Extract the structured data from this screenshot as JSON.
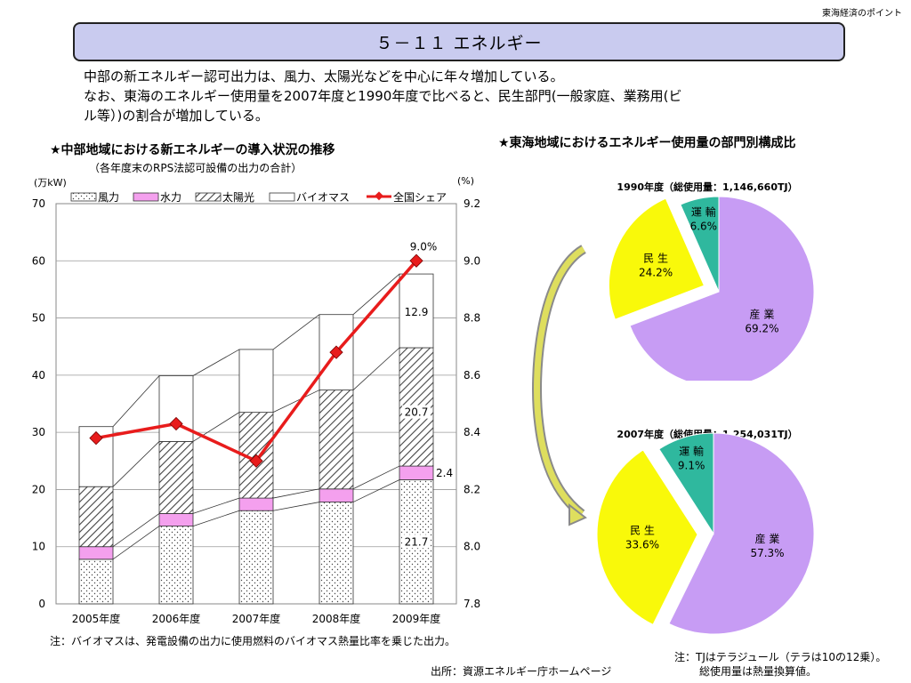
{
  "header_note": "東海経済のポイント",
  "title": "５－１１ エネルギー",
  "description": {
    "line1": "中部の新エネルギー認可出力は、風力、太陽光などを中心に年々増加している。",
    "line2": "なお、東海のエネルギー使用量を2007年度と1990年度で比べると、民生部門(一般家庭、業務用(ビ",
    "line3": "ル等）)の割合が増加している。"
  },
  "bar_section": {
    "title": "★中部地域における新エネルギーの導入状況の推移",
    "subtitle": "（各年度末のRPS法認可設備の出力の合計）",
    "left_unit": "(万kW)",
    "right_unit": "(%)",
    "note": "注：バイオマスは、発電設備の出力に使用燃料のバイオマス熱量比率を乗じた出力。"
  },
  "pie_section": {
    "title": "★東海地域におけるエネルギー使用量の部門別構成比"
  },
  "source": "出所：資源エネルギー庁ホームページ",
  "pie_note": {
    "line1": "注：TJはテラジュール（テラは10の12乗）。",
    "line2": "総使用量は熱量換算値。"
  },
  "colors": {
    "industry": "#c79cf4",
    "residential": "#f9f90a",
    "transport": "#2fb89e",
    "hydro": "#f4a0ee",
    "share_line": "#e81c1c"
  },
  "chart_data": [
    {
      "type": "bar",
      "stacked": true,
      "categories": [
        "2005年度",
        "2006年度",
        "2007年度",
        "2008年度",
        "2009年度"
      ],
      "series": [
        {
          "name": "風力",
          "values": [
            7.8,
            13.6,
            16.3,
            17.8,
            21.7
          ]
        },
        {
          "name": "水力",
          "values": [
            2.2,
            2.2,
            2.2,
            2.3,
            2.4
          ]
        },
        {
          "name": "太陽光",
          "values": [
            10.5,
            12.6,
            15.0,
            17.3,
            20.7
          ]
        },
        {
          "name": "バイオマス",
          "values": [
            10.5,
            11.5,
            11.0,
            13.2,
            12.9
          ]
        }
      ],
      "line_series": {
        "name": "全国シェア",
        "axis": "right",
        "values": [
          8.38,
          8.43,
          8.3,
          8.68,
          9.0
        ]
      },
      "labels": {
        "wind_2009": "21.7",
        "hydro_2009": "2.4",
        "solar_2009": "20.7",
        "biomass_2009": "12.9",
        "share_2009": "9.0%"
      },
      "ylim": [
        0,
        70
      ],
      "yticks": [
        "0",
        "10",
        "20",
        "30",
        "40",
        "50",
        "60",
        "70"
      ],
      "y2lim": [
        7.8,
        9.2
      ],
      "y2ticks": [
        "7.8",
        "8.0",
        "8.2",
        "8.4",
        "8.6",
        "8.8",
        "9.0",
        "9.2"
      ],
      "legend": "top"
    },
    {
      "type": "pie",
      "title": "1990年度（総使用量：1,146,660TJ）",
      "slices": [
        {
          "name": "産 業",
          "value": 69.2,
          "label": "69.2%"
        },
        {
          "name": "民 生",
          "value": 24.2,
          "label": "24.2%"
        },
        {
          "name": "運 輸",
          "value": 6.6,
          "label": "6.6%"
        }
      ]
    },
    {
      "type": "pie",
      "title": "2007年度（総使用量：1,254,031TJ）",
      "slices": [
        {
          "name": "産 業",
          "value": 57.3,
          "label": "57.3%"
        },
        {
          "name": "民 生",
          "value": 33.6,
          "label": "33.6%"
        },
        {
          "name": "運 輸",
          "value": 9.1,
          "label": "9.1%"
        }
      ]
    }
  ]
}
